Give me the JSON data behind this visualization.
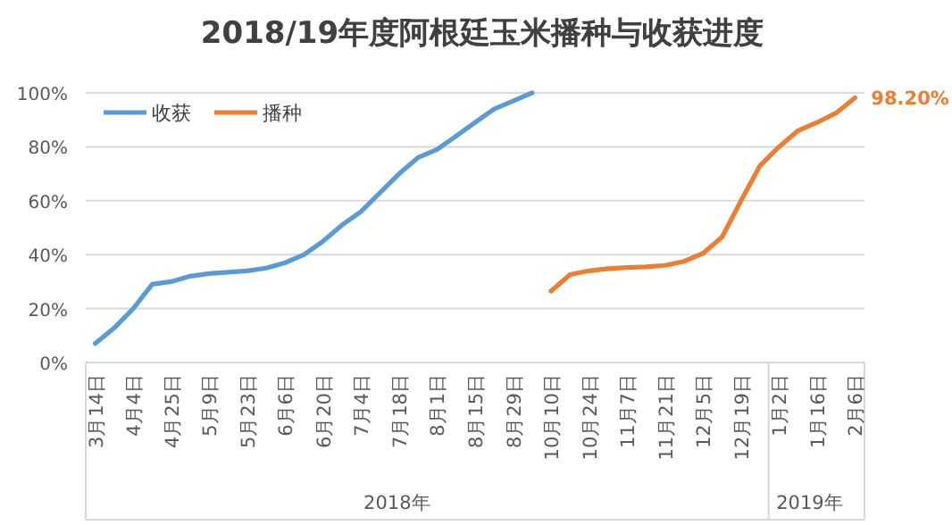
{
  "chart_data": {
    "type": "line",
    "title": "2018/19年度阿根廷玉米播种与收获进度",
    "categories": [
      "3月14日",
      null,
      "4月4日",
      null,
      "4月25日",
      null,
      "5月9日",
      null,
      "5月23日",
      null,
      "6月6日",
      null,
      "6月20日",
      null,
      "7月4日",
      null,
      "7月18日",
      null,
      "8月1日",
      null,
      "8月15日",
      null,
      "8月29日",
      null,
      "10月10日",
      null,
      "10月24日",
      null,
      "11月7日",
      null,
      "11月21日",
      null,
      "12月5日",
      null,
      "12月19日",
      null,
      "1月2日",
      null,
      "1月16日",
      null,
      "2月6日"
    ],
    "series": [
      {
        "name": "收获",
        "color": "#5b9bd5",
        "values": [
          7,
          12.8,
          20,
          29,
          30,
          32,
          33,
          33.5,
          34,
          35,
          37,
          40,
          45,
          51,
          56,
          63,
          70,
          76,
          79,
          84,
          89,
          94,
          97,
          100,
          null,
          null,
          null,
          null,
          null,
          null,
          null,
          null,
          null,
          null,
          null,
          null,
          null,
          null,
          null,
          null,
          null
        ]
      },
      {
        "name": "播种",
        "color": "#ed7d31",
        "values": [
          null,
          null,
          null,
          null,
          null,
          null,
          null,
          null,
          null,
          null,
          null,
          null,
          null,
          null,
          null,
          null,
          null,
          null,
          null,
          null,
          null,
          null,
          null,
          null,
          26.5,
          32.6,
          34,
          34.8,
          35.2,
          35.5,
          36,
          37.5,
          40.5,
          46.5,
          60,
          73,
          80,
          86,
          89,
          92.5,
          98.2
        ],
        "value_labels": [
          null,
          null,
          null,
          null,
          null,
          null,
          null,
          null,
          null,
          null,
          null,
          null,
          null,
          null,
          null,
          null,
          null,
          null,
          null,
          null,
          null,
          null,
          null,
          null,
          null,
          null,
          null,
          null,
          null,
          null,
          null,
          null,
          null,
          null,
          null,
          null,
          null,
          null,
          null,
          null,
          "98.20%"
        ]
      }
    ],
    "ylim": [
      0,
      100
    ],
    "yticks": [
      {
        "value": 0,
        "label": "0%"
      },
      {
        "value": 20,
        "label": "20%"
      },
      {
        "value": 40,
        "label": "40%"
      },
      {
        "value": 60,
        "label": "60%"
      },
      {
        "value": 80,
        "label": "80%"
      },
      {
        "value": 100,
        "label": "100%"
      }
    ],
    "grid": "y",
    "legend": "top left",
    "marker": "none",
    "line_style": "solid",
    "annotations": [
      "2018年",
      "2019年"
    ]
  }
}
